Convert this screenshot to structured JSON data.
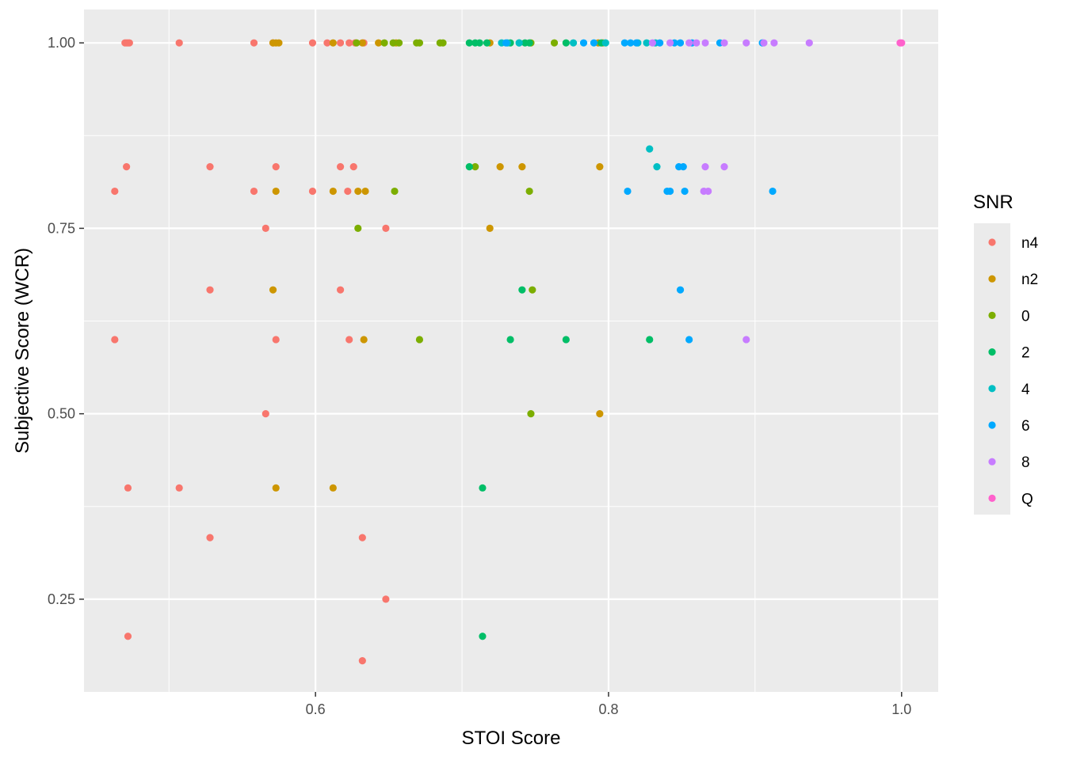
{
  "chart_data": {
    "type": "scatter",
    "title": "",
    "xlabel": "STOI Score",
    "ylabel": "Subjective Score (WCR)",
    "xlim": [
      0.442,
      1.025
    ],
    "ylim": [
      0.125,
      1.045
    ],
    "x_ticks": [
      0.6,
      0.8,
      1.0
    ],
    "x_tick_labels": [
      "0.6",
      "0.8",
      "1.0"
    ],
    "x_minor": [
      0.5,
      0.7,
      0.9
    ],
    "y_ticks": [
      0.25,
      0.5,
      0.75,
      1.0
    ],
    "y_tick_labels": [
      "0.25",
      "0.50",
      "0.75",
      "1.00"
    ],
    "y_minor": [
      0.375,
      0.625,
      0.875
    ],
    "grid": true,
    "panel_background": "#ebebeb",
    "legend": {
      "title": "SNR",
      "position": "right"
    },
    "series": [
      {
        "name": "n4",
        "color": "#F8766D",
        "points": [
          [
            0.47,
            1.0
          ],
          [
            0.471,
            1.0
          ],
          [
            0.472,
            1.0
          ],
          [
            0.473,
            1.0
          ],
          [
            0.507,
            1.0
          ],
          [
            0.558,
            1.0
          ],
          [
            0.571,
            1.0
          ],
          [
            0.598,
            1.0
          ],
          [
            0.608,
            1.0
          ],
          [
            0.617,
            1.0
          ],
          [
            0.623,
            1.0
          ],
          [
            0.627,
            1.0
          ],
          [
            0.633,
            1.0
          ],
          [
            0.471,
            0.833
          ],
          [
            0.528,
            0.833
          ],
          [
            0.573,
            0.833
          ],
          [
            0.617,
            0.833
          ],
          [
            0.626,
            0.833
          ],
          [
            0.463,
            0.8
          ],
          [
            0.558,
            0.8
          ],
          [
            0.598,
            0.8
          ],
          [
            0.622,
            0.8
          ],
          [
            0.566,
            0.75
          ],
          [
            0.648,
            0.75
          ],
          [
            0.528,
            0.667
          ],
          [
            0.617,
            0.667
          ],
          [
            0.463,
            0.6
          ],
          [
            0.573,
            0.6
          ],
          [
            0.623,
            0.6
          ],
          [
            0.566,
            0.5
          ],
          [
            0.472,
            0.4
          ],
          [
            0.507,
            0.4
          ],
          [
            0.528,
            0.333
          ],
          [
            0.632,
            0.333
          ],
          [
            0.648,
            0.25
          ],
          [
            0.472,
            0.2
          ],
          [
            0.632,
            0.167
          ]
        ]
      },
      {
        "name": "n2",
        "color": "#CD9600",
        "points": [
          [
            0.571,
            1.0
          ],
          [
            0.573,
            1.0
          ],
          [
            0.575,
            1.0
          ],
          [
            0.612,
            1.0
          ],
          [
            0.632,
            1.0
          ],
          [
            0.643,
            1.0
          ],
          [
            0.655,
            1.0
          ],
          [
            0.719,
            1.0
          ],
          [
            0.793,
            1.0
          ],
          [
            0.796,
            1.0
          ],
          [
            0.726,
            0.833
          ],
          [
            0.741,
            0.833
          ],
          [
            0.794,
            0.833
          ],
          [
            0.573,
            0.8
          ],
          [
            0.612,
            0.8
          ],
          [
            0.629,
            0.8
          ],
          [
            0.634,
            0.8
          ],
          [
            0.719,
            0.75
          ],
          [
            0.571,
            0.667
          ],
          [
            0.633,
            0.6
          ],
          [
            0.794,
            0.5
          ],
          [
            0.573,
            0.4
          ],
          [
            0.612,
            0.4
          ]
        ]
      },
      {
        "name": "0",
        "color": "#7CAE00",
        "points": [
          [
            0.628,
            1.0
          ],
          [
            0.647,
            1.0
          ],
          [
            0.653,
            1.0
          ],
          [
            0.657,
            1.0
          ],
          [
            0.669,
            1.0
          ],
          [
            0.671,
            1.0
          ],
          [
            0.685,
            1.0
          ],
          [
            0.687,
            1.0
          ],
          [
            0.747,
            1.0
          ],
          [
            0.763,
            1.0
          ],
          [
            0.709,
            0.833
          ],
          [
            0.654,
            0.8
          ],
          [
            0.746,
            0.8
          ],
          [
            0.629,
            0.75
          ],
          [
            0.748,
            0.667
          ],
          [
            0.671,
            0.6
          ],
          [
            0.747,
            0.5
          ]
        ]
      },
      {
        "name": "2",
        "color": "#00BE67",
        "points": [
          [
            0.705,
            1.0
          ],
          [
            0.709,
            1.0
          ],
          [
            0.712,
            1.0
          ],
          [
            0.717,
            1.0
          ],
          [
            0.733,
            1.0
          ],
          [
            0.739,
            1.0
          ],
          [
            0.743,
            1.0
          ],
          [
            0.746,
            1.0
          ],
          [
            0.771,
            1.0
          ],
          [
            0.795,
            1.0
          ],
          [
            0.705,
            0.833
          ],
          [
            0.741,
            0.667
          ],
          [
            0.733,
            0.6
          ],
          [
            0.771,
            0.6
          ],
          [
            0.828,
            0.6
          ],
          [
            0.714,
            0.4
          ],
          [
            0.714,
            0.2
          ]
        ]
      },
      {
        "name": "4",
        "color": "#00BFC4",
        "points": [
          [
            0.727,
            1.0
          ],
          [
            0.731,
            1.0
          ],
          [
            0.739,
            1.0
          ],
          [
            0.776,
            1.0
          ],
          [
            0.798,
            1.0
          ],
          [
            0.82,
            1.0
          ],
          [
            0.826,
            1.0
          ],
          [
            0.832,
            1.0
          ],
          [
            0.828,
            0.857
          ],
          [
            0.833,
            0.833
          ]
        ]
      },
      {
        "name": "6",
        "color": "#00A9FF",
        "points": [
          [
            0.73,
            1.0
          ],
          [
            0.783,
            1.0
          ],
          [
            0.79,
            1.0
          ],
          [
            0.811,
            1.0
          ],
          [
            0.815,
            1.0
          ],
          [
            0.819,
            1.0
          ],
          [
            0.835,
            1.0
          ],
          [
            0.845,
            1.0
          ],
          [
            0.849,
            1.0
          ],
          [
            0.857,
            1.0
          ],
          [
            0.876,
            1.0
          ],
          [
            0.905,
            1.0
          ],
          [
            0.848,
            0.833
          ],
          [
            0.851,
            0.833
          ],
          [
            0.813,
            0.8
          ],
          [
            0.84,
            0.8
          ],
          [
            0.842,
            0.8
          ],
          [
            0.852,
            0.8
          ],
          [
            0.912,
            0.8
          ],
          [
            0.849,
            0.667
          ],
          [
            0.855,
            0.6
          ]
        ]
      },
      {
        "name": "8",
        "color": "#C77CFF",
        "points": [
          [
            0.83,
            1.0
          ],
          [
            0.842,
            1.0
          ],
          [
            0.855,
            1.0
          ],
          [
            0.86,
            1.0
          ],
          [
            0.866,
            1.0
          ],
          [
            0.879,
            1.0
          ],
          [
            0.894,
            1.0
          ],
          [
            0.906,
            1.0
          ],
          [
            0.913,
            1.0
          ],
          [
            0.937,
            1.0
          ],
          [
            0.866,
            0.833
          ],
          [
            0.879,
            0.833
          ],
          [
            0.865,
            0.8
          ],
          [
            0.868,
            0.8
          ],
          [
            0.894,
            0.6
          ]
        ]
      },
      {
        "name": "Q",
        "color": "#FF61CC",
        "points": [
          [
            0.999,
            1.0
          ],
          [
            1.0,
            1.0
          ]
        ]
      }
    ]
  }
}
